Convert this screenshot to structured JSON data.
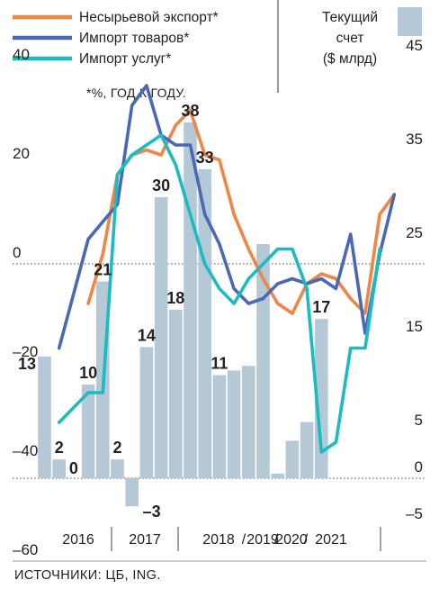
{
  "chart_data": {
    "type": "bar+line",
    "note": "*%, ГОД К ГОДУ.",
    "source": "ИСТОЧНИКИ: ЦБ, ING.",
    "left_axis": {
      "ticks": [
        40,
        20,
        0,
        -20,
        -40,
        -60
      ],
      "tick_labels": [
        "40",
        "20",
        "0",
        "–20",
        "–40",
        "–60"
      ],
      "ylim": [
        -60,
        40
      ]
    },
    "right_axis": {
      "title": [
        "Текущий",
        "счет",
        "($ млрд)"
      ],
      "ticks": [
        45,
        35,
        25,
        15,
        5,
        0,
        -5
      ],
      "tick_labels": [
        "45",
        "35",
        "25",
        "15",
        "5",
        "0",
        "–5"
      ],
      "ylim": [
        -5,
        45
      ]
    },
    "x_groups": [
      "2016",
      "2017",
      "2018",
      "2019",
      "2020",
      "2021"
    ],
    "bars": {
      "values": [
        13,
        2,
        0,
        10,
        21,
        2,
        -3,
        14,
        30,
        18,
        38,
        33,
        11,
        11.5,
        12,
        25,
        0.5,
        4,
        6,
        17
      ],
      "labels": [
        "13",
        "2",
        "0",
        "10",
        "21",
        "2",
        "–3",
        "14",
        "30",
        "18",
        "38",
        "33",
        "11",
        "",
        "",
        "",
        "",
        "",
        "",
        "17"
      ],
      "color": "#b5c8d6"
    },
    "series": [
      {
        "name": "Несырьевой экспорт*",
        "color": "#f08546",
        "points": [
          [
            3,
            -8
          ],
          [
            4,
            2
          ],
          [
            5,
            18
          ],
          [
            6,
            22
          ],
          [
            7,
            23
          ],
          [
            8,
            22
          ],
          [
            9,
            28
          ],
          [
            10,
            31
          ],
          [
            11,
            22
          ],
          [
            12,
            21
          ],
          [
            13,
            10
          ],
          [
            14,
            3
          ],
          [
            15,
            -3
          ],
          [
            16,
            -8
          ],
          [
            17,
            -10
          ],
          [
            18,
            -4
          ],
          [
            19,
            -2
          ],
          [
            20,
            -3
          ],
          [
            21,
            -7
          ],
          [
            22,
            -10
          ],
          [
            23,
            10
          ],
          [
            24,
            14
          ]
        ]
      },
      {
        "name": "Импорт товаров*",
        "color": "#4a68b5",
        "points": [
          [
            1,
            -17
          ],
          [
            3,
            5
          ],
          [
            5,
            12
          ],
          [
            6,
            32
          ],
          [
            7,
            36
          ],
          [
            8,
            26
          ],
          [
            9,
            24
          ],
          [
            10,
            24
          ],
          [
            11,
            10
          ],
          [
            12,
            4
          ],
          [
            13,
            -5
          ],
          [
            14,
            -8
          ],
          [
            15,
            -7
          ],
          [
            16,
            -4
          ],
          [
            17,
            -3
          ],
          [
            18,
            -4
          ],
          [
            19,
            -3
          ],
          [
            20,
            -5
          ],
          [
            21,
            6
          ],
          [
            22,
            -14
          ],
          [
            23,
            2
          ],
          [
            24,
            14
          ]
        ]
      },
      {
        "name": "Импорт услуг*",
        "color": "#1abcbf",
        "points": [
          [
            1,
            -32
          ],
          [
            3,
            -26
          ],
          [
            4,
            -26
          ],
          [
            5,
            18
          ],
          [
            6,
            22
          ],
          [
            7,
            24
          ],
          [
            8,
            26
          ],
          [
            9,
            20
          ],
          [
            10,
            10
          ],
          [
            11,
            0
          ],
          [
            12,
            -5
          ],
          [
            13,
            -8
          ],
          [
            14,
            -3
          ],
          [
            15,
            0
          ],
          [
            16,
            3
          ],
          [
            17,
            3
          ],
          [
            18,
            -5
          ],
          [
            19,
            -38
          ],
          [
            20,
            -36
          ],
          [
            21,
            -17
          ],
          [
            22,
            -17
          ],
          [
            23,
            3
          ]
        ]
      }
    ]
  }
}
